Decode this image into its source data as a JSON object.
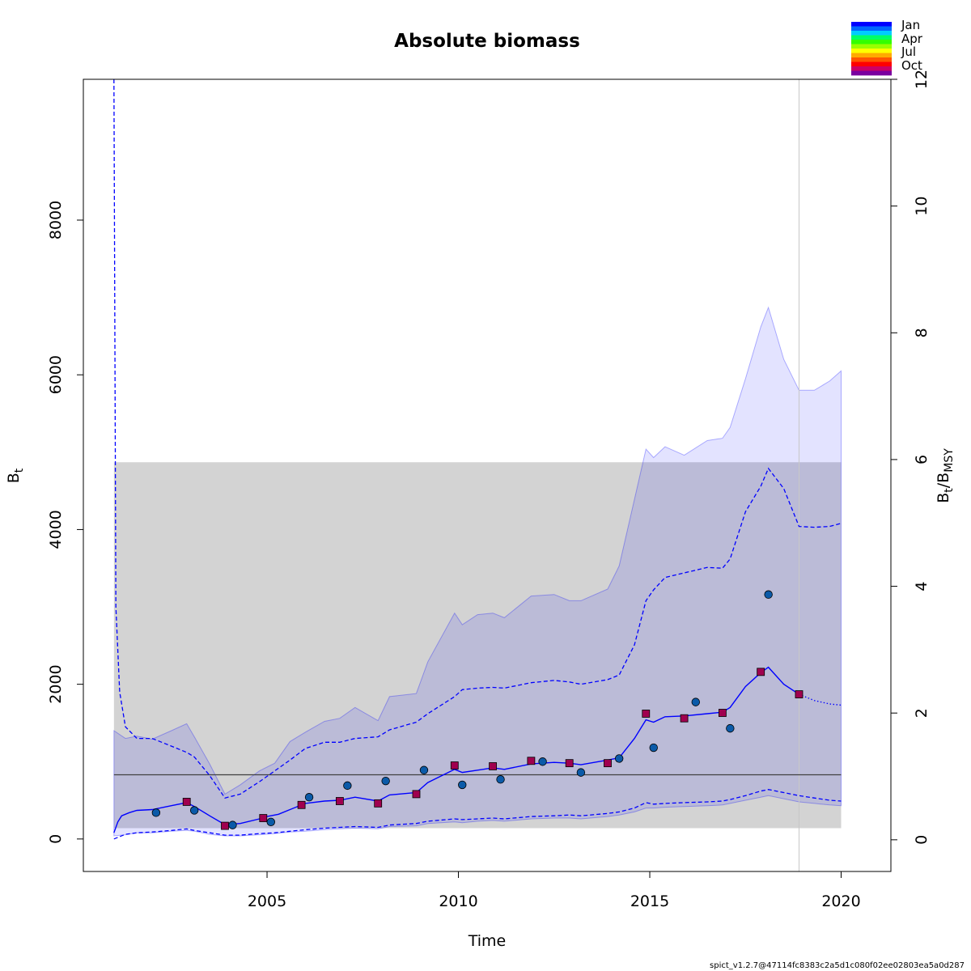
{
  "chart_data": {
    "type": "line",
    "title": "Absolute biomass",
    "xlabel": "Time",
    "ylabel": {
      "base": "B",
      "sub": "t"
    },
    "ylabel_right": {
      "base1": "B",
      "sub1": "t",
      "sep": "/",
      "base2": "B",
      "sub2": "MSY"
    },
    "footer": "spict_v1.2.7@47114fc8383c2a5d1c080f02ee02803ea5a0d287",
    "xlim": [
      2000.2,
      2021.3
    ],
    "ylim": [
      -420,
      9820
    ],
    "ylim_right": [
      -0.5,
      12
    ],
    "x_ticks": [
      2005,
      2010,
      2015,
      2020
    ],
    "x_tick_labels": [
      "2005",
      "2010",
      "2015",
      "2020"
    ],
    "y_ticks": [
      0,
      2000,
      4000,
      6000,
      8000
    ],
    "y_tick_labels": [
      "0",
      "2000",
      "4000",
      "6000",
      "8000"
    ],
    "y_right_ticks": [
      0,
      2,
      4,
      6,
      8,
      10,
      12
    ],
    "y_right_tick_labels": [
      "0",
      "2",
      "4",
      "6",
      "8",
      "10",
      "12"
    ],
    "bmsy": 830,
    "bmsy_ci": [
      140,
      4870
    ],
    "bmsy_ci_x": [
      2001.0,
      2020.0
    ],
    "forecast_start": 2018.9,
    "colors": {
      "estimate": "#0000ff",
      "ci_fill": "#0000ff",
      "bmsy_band": "#d3d3d3",
      "bmsy_line": "#404040",
      "forecast_line": "#c8c8c8"
    },
    "season_legend": {
      "labels": [
        "Jan",
        "Apr",
        "Jul",
        "Oct"
      ],
      "colors": [
        "#0000ff",
        "#0066ff",
        "#00ccff",
        "#00ff66",
        "#33ff00",
        "#99ff00",
        "#ffff00",
        "#ffaa00",
        "#ff5500",
        "#ff0000",
        "#cc0066",
        "#7a00a0"
      ]
    },
    "series": [
      {
        "role": "estimate",
        "x": [
          2001.0,
          2001.1,
          2001.2,
          2001.4,
          2001.6,
          2002.0,
          2002.5,
          2002.9,
          2003.1,
          2003.5,
          2003.9,
          2004.3,
          2004.8,
          2005.0,
          2005.3,
          2005.6,
          2006.0,
          2006.5,
          2006.9,
          2007.3,
          2007.9,
          2008.2,
          2008.9,
          2009.2,
          2009.9,
          2010.1,
          2010.5,
          2010.9,
          2011.2,
          2011.9,
          2012.5,
          2012.9,
          2013.2,
          2013.9,
          2014.2,
          2014.6,
          2014.9,
          2015.1,
          2015.4,
          2015.9,
          2016.5,
          2016.9,
          2017.1,
          2017.5,
          2017.9,
          2018.1,
          2018.5,
          2018.9
        ],
        "y": [
          80,
          220,
          300,
          340,
          370,
          380,
          430,
          470,
          420,
          300,
          185,
          200,
          260,
          290,
          320,
          380,
          460,
          490,
          500,
          540,
          490,
          570,
          600,
          730,
          900,
          860,
          890,
          920,
          900,
          970,
          990,
          980,
          960,
          1020,
          1050,
          1300,
          1540,
          1510,
          1580,
          1590,
          1620,
          1640,
          1700,
          1970,
          2150,
          2220,
          2000,
          1870
        ]
      },
      {
        "role": "forecast",
        "x": [
          2018.9,
          2019.3,
          2019.7,
          2020.0
        ],
        "y": [
          1870,
          1790,
          1745,
          1730
        ]
      },
      {
        "role": "ci_upper",
        "x": [
          2001.0,
          2001.05,
          2001.15,
          2001.3,
          2001.6,
          2002.0,
          2002.5,
          2002.9,
          2003.1,
          2003.5,
          2003.9,
          2004.3,
          2004.8,
          2005.2,
          2005.6,
          2006.0,
          2006.5,
          2006.9,
          2007.3,
          2007.9,
          2008.2,
          2008.9,
          2009.2,
          2009.9,
          2010.1,
          2010.5,
          2010.9,
          2011.2,
          2011.9,
          2012.5,
          2012.9,
          2013.2,
          2013.9,
          2014.2,
          2014.6,
          2014.9,
          2015.1,
          2015.4,
          2015.9,
          2016.5,
          2016.9,
          2017.1,
          2017.5,
          2017.9,
          2018.1,
          2018.5,
          2018.9,
          2019.3,
          2019.7,
          2020.0
        ],
        "y": [
          9820,
          3000,
          1900,
          1450,
          1300,
          1300,
          1200,
          1120,
          1060,
          820,
          530,
          580,
          740,
          880,
          1020,
          1170,
          1250,
          1250,
          1300,
          1320,
          1410,
          1510,
          1620,
          1840,
          1930,
          1950,
          1960,
          1950,
          2020,
          2050,
          2030,
          2000,
          2060,
          2120,
          2510,
          3080,
          3220,
          3380,
          3440,
          3510,
          3500,
          3620,
          4230,
          4560,
          4790,
          4530,
          4040,
          4030,
          4040,
          4080
        ]
      },
      {
        "role": "ci_lower",
        "x": [
          2001.0,
          2001.3,
          2001.6,
          2002.0,
          2002.5,
          2002.9,
          2003.1,
          2003.5,
          2003.9,
          2004.3,
          2004.8,
          2005.2,
          2005.6,
          2006.0,
          2006.5,
          2006.9,
          2007.3,
          2007.9,
          2008.2,
          2008.9,
          2009.2,
          2009.9,
          2010.1,
          2010.5,
          2010.9,
          2011.2,
          2011.9,
          2012.5,
          2012.9,
          2013.2,
          2013.9,
          2014.2,
          2014.6,
          2014.9,
          2015.1,
          2015.4,
          2015.9,
          2016.5,
          2016.9,
          2017.1,
          2017.5,
          2017.9,
          2018.1,
          2018.5,
          2018.9,
          2019.3,
          2019.7,
          2020.0
        ],
        "y": [
          0,
          60,
          80,
          90,
          110,
          130,
          110,
          80,
          50,
          50,
          70,
          80,
          100,
          120,
          140,
          150,
          160,
          150,
          180,
          200,
          230,
          260,
          250,
          260,
          270,
          260,
          290,
          300,
          310,
          300,
          330,
          350,
          400,
          470,
          450,
          460,
          470,
          480,
          490,
          510,
          560,
          620,
          640,
          600,
          560,
          530,
          500,
          490
        ]
      },
      {
        "role": "ci_outer_upper",
        "x": [
          2001.0,
          2001.3,
          2001.6,
          2002.0,
          2002.5,
          2002.9,
          2003.1,
          2003.5,
          2003.9,
          2004.3,
          2004.8,
          2005.2,
          2005.6,
          2006.0,
          2006.5,
          2006.9,
          2007.3,
          2007.9,
          2008.2,
          2008.9,
          2009.2,
          2009.9,
          2010.1,
          2010.5,
          2010.9,
          2011.2,
          2011.9,
          2012.5,
          2012.9,
          2013.2,
          2013.9,
          2014.2,
          2014.6,
          2014.9,
          2015.1,
          2015.4,
          2015.9,
          2016.5,
          2016.9,
          2017.1,
          2017.5,
          2017.9,
          2018.1,
          2018.5,
          2018.9,
          2019.3,
          2019.7,
          2020.0
        ],
        "y": [
          1400,
          1300,
          1330,
          1290,
          1400,
          1490,
          1320,
          970,
          580,
          700,
          880,
          980,
          1260,
          1380,
          1520,
          1560,
          1700,
          1530,
          1840,
          1880,
          2290,
          2920,
          2770,
          2900,
          2920,
          2860,
          3140,
          3160,
          3080,
          3080,
          3230,
          3530,
          4390,
          5040,
          4930,
          5070,
          4960,
          5150,
          5180,
          5320,
          5950,
          6620,
          6870,
          6200,
          5800,
          5800,
          5920,
          6050
        ]
      },
      {
        "role": "ci_outer_lower",
        "x": [
          2001.0,
          2001.3,
          2001.6,
          2002.0,
          2002.5,
          2002.9,
          2003.1,
          2003.5,
          2003.9,
          2004.3,
          2004.8,
          2005.2,
          2005.6,
          2006.0,
          2006.5,
          2006.9,
          2007.3,
          2007.9,
          2008.2,
          2008.9,
          2009.2,
          2009.9,
          2010.1,
          2010.5,
          2010.9,
          2011.2,
          2011.9,
          2012.5,
          2012.9,
          2013.2,
          2013.9,
          2014.2,
          2014.6,
          2014.9,
          2015.1,
          2015.4,
          2015.9,
          2016.5,
          2016.9,
          2017.1,
          2017.5,
          2017.9,
          2018.1,
          2018.5,
          2018.9,
          2019.3,
          2019.7,
          2020.0
        ],
        "y": [
          40,
          55,
          80,
          80,
          100,
          110,
          100,
          60,
          40,
          40,
          55,
          70,
          90,
          100,
          120,
          130,
          140,
          130,
          160,
          170,
          200,
          220,
          210,
          230,
          240,
          230,
          260,
          270,
          270,
          260,
          290,
          310,
          350,
          400,
          400,
          410,
          420,
          430,
          440,
          460,
          500,
          540,
          560,
          520,
          480,
          460,
          440,
          430
        ]
      }
    ],
    "index1_points": {
      "marker": "circle",
      "color": "#0b5aa8",
      "x": [
        2002.1,
        2003.1,
        2004.1,
        2005.1,
        2006.1,
        2007.1,
        2008.1,
        2009.1,
        2010.1,
        2011.1,
        2012.2,
        2013.2,
        2014.2,
        2015.1,
        2016.2,
        2017.1,
        2018.1
      ],
      "y": [
        340,
        370,
        180,
        220,
        540,
        690,
        750,
        890,
        700,
        770,
        1000,
        860,
        1040,
        1180,
        1770,
        1430,
        3160
      ]
    },
    "index2_points": {
      "marker": "square",
      "color": "#a0004f",
      "x": [
        2002.9,
        2003.9,
        2004.9,
        2005.9,
        2006.9,
        2007.9,
        2008.9,
        2009.9,
        2010.9,
        2011.9,
        2012.9,
        2013.9,
        2014.9,
        2015.9,
        2016.9,
        2017.9,
        2018.9
      ],
      "y": [
        480,
        170,
        270,
        440,
        490,
        460,
        580,
        950,
        940,
        1010,
        980,
        980,
        1620,
        1560,
        1630,
        2160,
        1870
      ]
    }
  }
}
